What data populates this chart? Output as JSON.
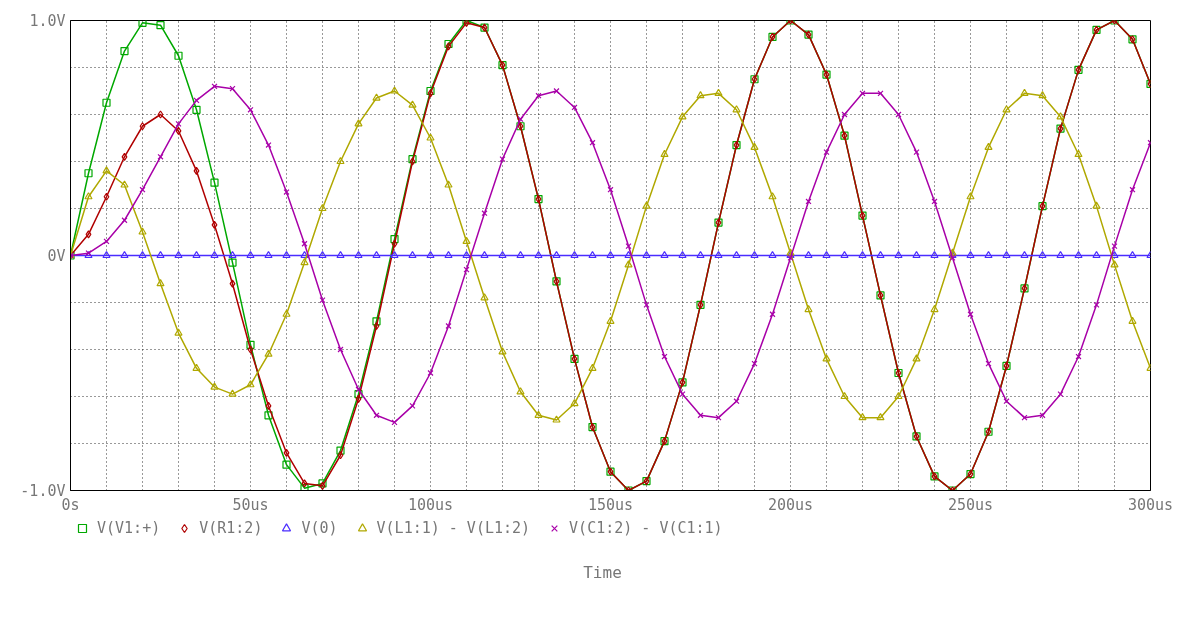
{
  "chart_data": {
    "type": "line",
    "xlabel": "Time",
    "x": [
      0,
      5,
      10,
      15,
      20,
      25,
      30,
      35,
      40,
      45,
      50,
      55,
      60,
      65,
      70,
      75,
      80,
      85,
      90,
      95,
      100,
      105,
      110,
      115,
      120,
      125,
      130,
      135,
      140,
      145,
      150,
      155,
      160,
      165,
      170,
      175,
      180,
      185,
      190,
      195,
      200,
      205,
      210,
      215,
      220,
      225,
      230,
      235,
      240,
      245,
      250,
      255,
      260,
      265,
      270,
      275,
      280,
      285,
      290,
      295,
      300
    ],
    "xlim": [
      0,
      300
    ],
    "xticks": [
      {
        "value": 0,
        "label": "0s"
      },
      {
        "value": 10,
        "label": null
      },
      {
        "value": 20,
        "label": null
      },
      {
        "value": 30,
        "label": null
      },
      {
        "value": 40,
        "label": null
      },
      {
        "value": 50,
        "label": "50us"
      },
      {
        "value": 60,
        "label": null
      },
      {
        "value": 70,
        "label": null
      },
      {
        "value": 80,
        "label": null
      },
      {
        "value": 90,
        "label": null
      },
      {
        "value": 100,
        "label": "100us"
      },
      {
        "value": 110,
        "label": null
      },
      {
        "value": 120,
        "label": null
      },
      {
        "value": 130,
        "label": null
      },
      {
        "value": 140,
        "label": null
      },
      {
        "value": 150,
        "label": "150us"
      },
      {
        "value": 160,
        "label": null
      },
      {
        "value": 170,
        "label": null
      },
      {
        "value": 180,
        "label": null
      },
      {
        "value": 190,
        "label": null
      },
      {
        "value": 200,
        "label": "200us"
      },
      {
        "value": 210,
        "label": null
      },
      {
        "value": 220,
        "label": null
      },
      {
        "value": 230,
        "label": null
      },
      {
        "value": 240,
        "label": null
      },
      {
        "value": 250,
        "label": "250us"
      },
      {
        "value": 260,
        "label": null
      },
      {
        "value": 270,
        "label": null
      },
      {
        "value": 280,
        "label": null
      },
      {
        "value": 290,
        "label": null
      },
      {
        "value": 300,
        "label": "300us"
      }
    ],
    "ylim": [
      -1,
      1
    ],
    "yticks": [
      {
        "value": -1,
        "label": "-1.0V"
      },
      {
        "value": -0.8,
        "label": null
      },
      {
        "value": -0.6,
        "label": null
      },
      {
        "value": -0.4,
        "label": null
      },
      {
        "value": -0.2,
        "label": null
      },
      {
        "value": 0,
        "label": "0V"
      },
      {
        "value": 0.2,
        "label": null
      },
      {
        "value": 0.4,
        "label": null
      },
      {
        "value": 0.6,
        "label": null
      },
      {
        "value": 0.8,
        "label": null
      },
      {
        "value": 1,
        "label": "1.0V"
      }
    ],
    "grid": true,
    "legend": "bottom",
    "series": [
      {
        "name": "V(V1:+)",
        "color": "#00a800",
        "marker": "square",
        "values": [
          0,
          0.35,
          0.65,
          0.87,
          0.99,
          0.98,
          0.85,
          0.62,
          0.31,
          -0.03,
          -0.38,
          -0.68,
          -0.89,
          -0.99,
          -0.97,
          -0.83,
          -0.59,
          -0.28,
          0.07,
          0.41,
          0.7,
          0.9,
          1.0,
          0.97,
          0.81,
          0.55,
          0.24,
          -0.11,
          -0.44,
          -0.73,
          -0.92,
          -1.0,
          -0.96,
          -0.79,
          -0.54,
          -0.21,
          0.14,
          0.47,
          0.75,
          0.93,
          1.0,
          0.94,
          0.77,
          0.51,
          0.17,
          -0.17,
          -0.5,
          -0.77,
          -0.94,
          -1.0,
          -0.93,
          -0.75,
          -0.47,
          -0.14,
          0.21,
          0.54,
          0.79,
          0.96,
          1.0,
          0.92,
          0.73
        ]
      },
      {
        "name": "V(R1:2)",
        "color": "#b00000",
        "marker": "diamond",
        "values": [
          0,
          0.09,
          0.25,
          0.42,
          0.55,
          0.6,
          0.53,
          0.36,
          0.13,
          -0.12,
          -0.4,
          -0.64,
          -0.84,
          -0.97,
          -0.98,
          -0.85,
          -0.61,
          -0.3,
          0.05,
          0.4,
          0.69,
          0.89,
          0.99,
          0.97,
          0.81,
          0.55,
          0.24,
          -0.11,
          -0.44,
          -0.73,
          -0.92,
          -1.0,
          -0.96,
          -0.79,
          -0.54,
          -0.21,
          0.14,
          0.47,
          0.75,
          0.93,
          1.0,
          0.94,
          0.77,
          0.51,
          0.17,
          -0.17,
          -0.5,
          -0.77,
          -0.94,
          -1.0,
          -0.93,
          -0.75,
          -0.47,
          -0.14,
          0.21,
          0.54,
          0.79,
          0.96,
          1.0,
          0.92,
          0.73
        ]
      },
      {
        "name": "V(0)",
        "color": "#4a2cff",
        "marker": "triangle",
        "values": [
          0,
          0,
          0,
          0,
          0,
          0,
          0,
          0,
          0,
          0,
          0,
          0,
          0,
          0,
          0,
          0,
          0,
          0,
          0,
          0,
          0,
          0,
          0,
          0,
          0,
          0,
          0,
          0,
          0,
          0,
          0,
          0,
          0,
          0,
          0,
          0,
          0,
          0,
          0,
          0,
          0,
          0,
          0,
          0,
          0,
          0,
          0,
          0,
          0,
          0,
          0,
          0,
          0,
          0,
          0,
          0,
          0,
          0,
          0,
          0,
          0
        ]
      },
      {
        "name": "V(L1:1) - V(L1:2)",
        "color": "#b0a800",
        "marker": "triangle",
        "values": [
          0,
          0.25,
          0.36,
          0.3,
          0.1,
          -0.12,
          -0.33,
          -0.48,
          -0.56,
          -0.59,
          -0.55,
          -0.42,
          -0.25,
          -0.03,
          0.2,
          0.4,
          0.56,
          0.67,
          0.7,
          0.64,
          0.5,
          0.3,
          0.06,
          -0.18,
          -0.41,
          -0.58,
          -0.68,
          -0.7,
          -0.63,
          -0.48,
          -0.28,
          -0.04,
          0.21,
          0.43,
          0.59,
          0.68,
          0.69,
          0.62,
          0.46,
          0.25,
          0.01,
          -0.23,
          -0.44,
          -0.6,
          -0.69,
          -0.69,
          -0.6,
          -0.44,
          -0.23,
          0.01,
          0.25,
          0.46,
          0.62,
          0.69,
          0.68,
          0.59,
          0.43,
          0.21,
          -0.04,
          -0.28,
          -0.48
        ]
      },
      {
        "name": "V(C1:2) - V(C1:1)",
        "color": "#a800a8",
        "marker": "cross",
        "values": [
          0,
          0.01,
          0.06,
          0.15,
          0.28,
          0.42,
          0.56,
          0.66,
          0.72,
          0.71,
          0.62,
          0.47,
          0.27,
          0.05,
          -0.19,
          -0.4,
          -0.57,
          -0.68,
          -0.71,
          -0.64,
          -0.5,
          -0.3,
          -0.06,
          0.18,
          0.41,
          0.58,
          0.68,
          0.7,
          0.63,
          0.48,
          0.28,
          0.04,
          -0.21,
          -0.43,
          -0.59,
          -0.68,
          -0.69,
          -0.62,
          -0.46,
          -0.25,
          -0.01,
          0.23,
          0.44,
          0.6,
          0.69,
          0.69,
          0.6,
          0.44,
          0.23,
          -0.01,
          -0.25,
          -0.46,
          -0.62,
          -0.69,
          -0.68,
          -0.59,
          -0.43,
          -0.21,
          0.04,
          0.28,
          0.48
        ]
      }
    ]
  }
}
